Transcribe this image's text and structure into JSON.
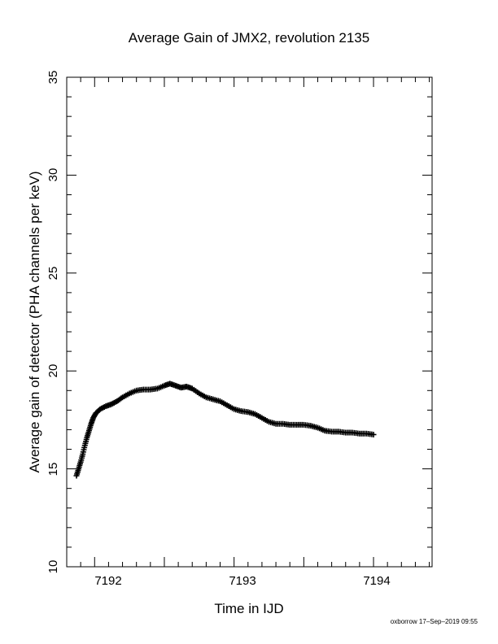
{
  "chart_data": {
    "type": "scatter",
    "title": "Average Gain of JMX2, revolution 2135",
    "xlabel": "Time in IJD",
    "ylabel": "Average gain of detector (PHA channels per keV)",
    "xlim": [
      7191.8,
      7194.42
    ],
    "ylim": [
      10,
      35
    ],
    "x_ticks": [
      "7192",
      "7193",
      "7194"
    ],
    "y_ticks": [
      "10",
      "15",
      "20",
      "25",
      "30",
      "35"
    ],
    "marker": "plus",
    "grid": false,
    "legend": "none",
    "series": [
      {
        "points": [
          [
            7191.87,
            14.65
          ],
          [
            7191.885,
            15.0
          ],
          [
            7191.9,
            15.35
          ],
          [
            7191.915,
            15.75
          ],
          [
            7191.93,
            16.2
          ],
          [
            7191.945,
            16.6
          ],
          [
            7191.96,
            16.95
          ],
          [
            7191.975,
            17.3
          ],
          [
            7191.99,
            17.6
          ],
          [
            7192.01,
            17.85
          ],
          [
            7192.04,
            18.05
          ],
          [
            7192.08,
            18.2
          ],
          [
            7192.12,
            18.3
          ],
          [
            7192.16,
            18.45
          ],
          [
            7192.2,
            18.65
          ],
          [
            7192.25,
            18.85
          ],
          [
            7192.3,
            19.0
          ],
          [
            7192.35,
            19.05
          ],
          [
            7192.4,
            19.05
          ],
          [
            7192.45,
            19.1
          ],
          [
            7192.5,
            19.25
          ],
          [
            7192.54,
            19.35
          ],
          [
            7192.58,
            19.25
          ],
          [
            7192.62,
            19.15
          ],
          [
            7192.66,
            19.2
          ],
          [
            7192.7,
            19.1
          ],
          [
            7192.75,
            18.85
          ],
          [
            7192.8,
            18.65
          ],
          [
            7192.85,
            18.55
          ],
          [
            7192.9,
            18.45
          ],
          [
            7192.95,
            18.25
          ],
          [
            7193.0,
            18.05
          ],
          [
            7193.05,
            17.95
          ],
          [
            7193.1,
            17.9
          ],
          [
            7193.15,
            17.8
          ],
          [
            7193.2,
            17.6
          ],
          [
            7193.25,
            17.4
          ],
          [
            7193.3,
            17.3
          ],
          [
            7193.35,
            17.3
          ],
          [
            7193.4,
            17.25
          ],
          [
            7193.45,
            17.25
          ],
          [
            7193.5,
            17.25
          ],
          [
            7193.55,
            17.2
          ],
          [
            7193.6,
            17.1
          ],
          [
            7193.65,
            16.95
          ],
          [
            7193.7,
            16.9
          ],
          [
            7193.75,
            16.9
          ],
          [
            7193.8,
            16.85
          ],
          [
            7193.85,
            16.85
          ],
          [
            7193.9,
            16.8
          ],
          [
            7193.95,
            16.8
          ],
          [
            7194.0,
            16.75
          ]
        ]
      }
    ]
  },
  "footer": "oxborrow 17–Sep–2019 09:55"
}
